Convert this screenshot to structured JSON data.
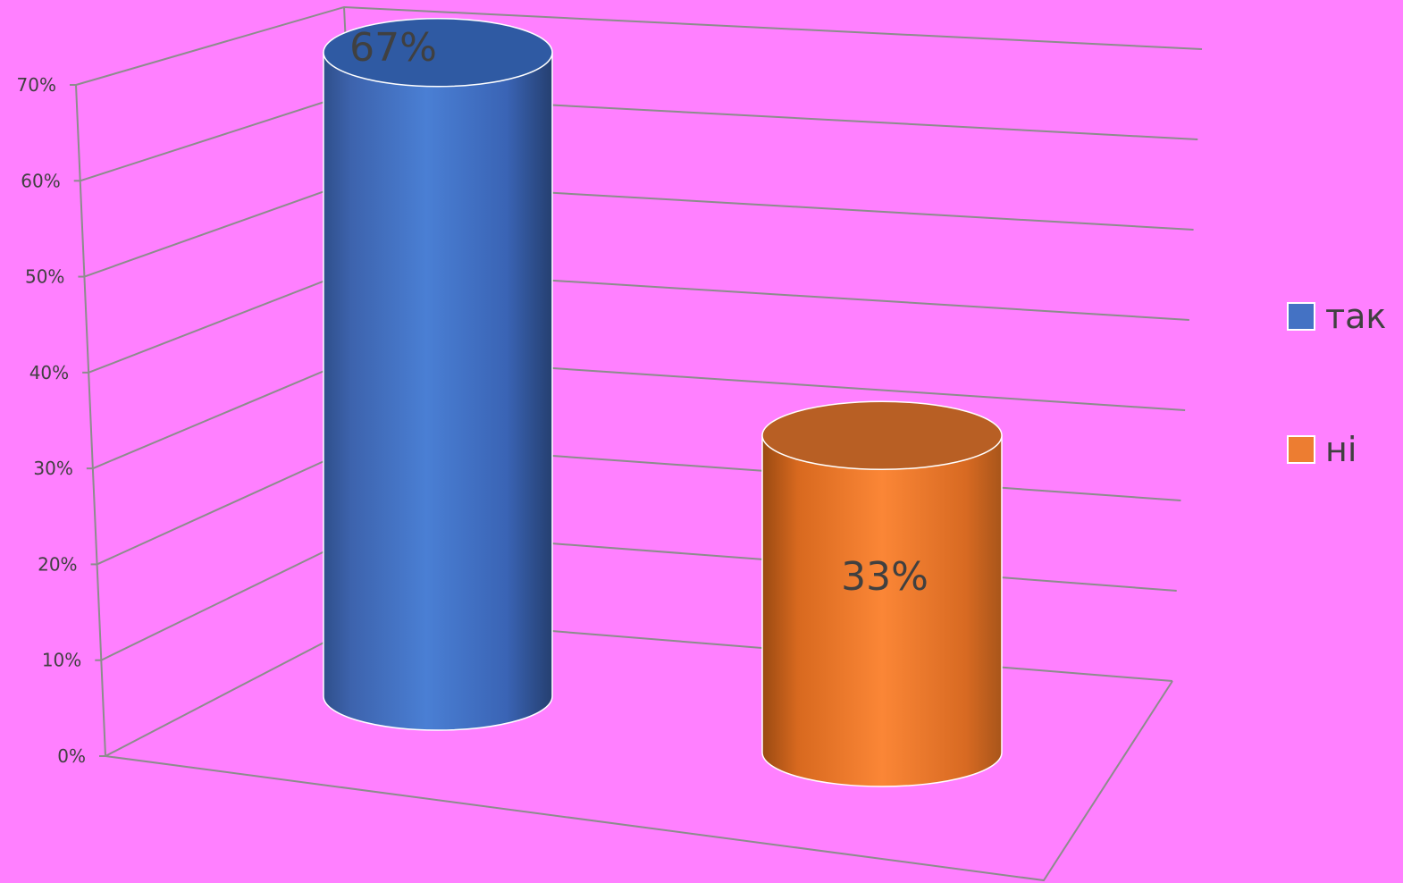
{
  "chart_data": {
    "type": "bar",
    "style": "3d-cylinder",
    "categories": [
      ""
    ],
    "series": [
      {
        "name": "так",
        "values": [
          67
        ],
        "data_label": "67%",
        "color": "#4472c4"
      },
      {
        "name": "ні",
        "values": [
          33
        ],
        "data_label": "33%",
        "color": "#ed7d31"
      }
    ],
    "ylim": [
      0,
      70
    ],
    "yticks": [
      "0%",
      "10%",
      "20%",
      "30%",
      "40%",
      "50%",
      "60%",
      "70%"
    ],
    "grid": true,
    "legend": "right",
    "title": "",
    "xlabel": "",
    "ylabel": ""
  }
}
